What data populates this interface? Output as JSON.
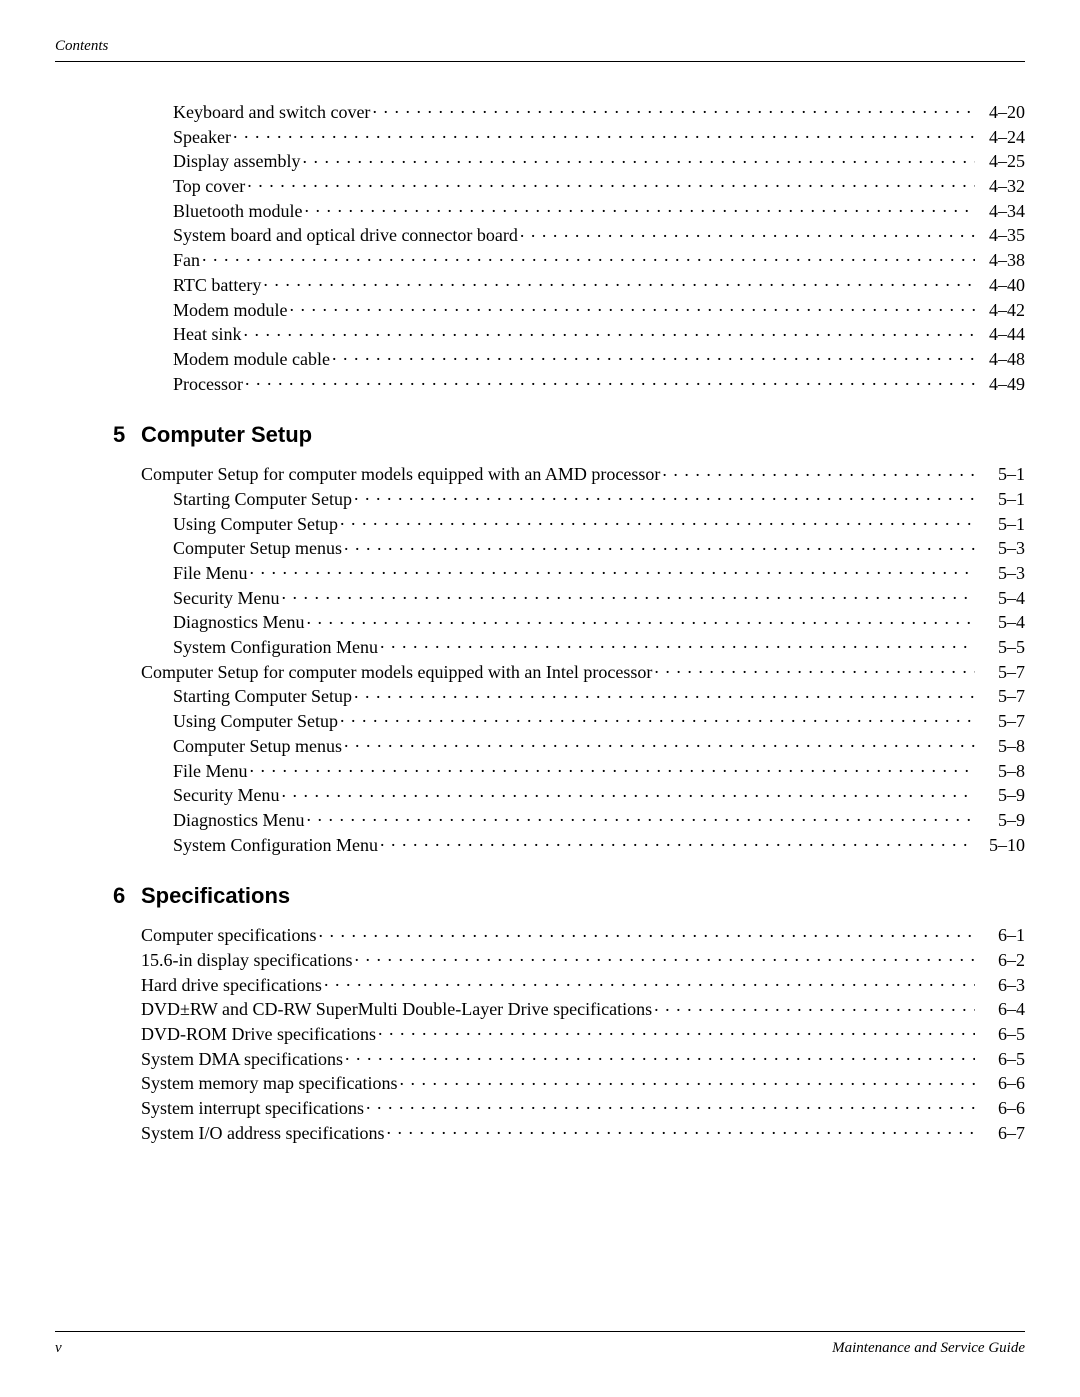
{
  "header": {
    "label": "Contents"
  },
  "footer": {
    "left": "v",
    "right": "Maintenance and Service Guide"
  },
  "preEntries": [
    {
      "label": "Keyboard and switch cover",
      "page": "4–20",
      "indent": 1
    },
    {
      "label": "Speaker",
      "page": "4–24",
      "indent": 1
    },
    {
      "label": "Display assembly",
      "page": "4–25",
      "indent": 1
    },
    {
      "label": "Top cover",
      "page": "4–32",
      "indent": 1
    },
    {
      "label": "Bluetooth module",
      "page": "4–34",
      "indent": 1
    },
    {
      "label": "System board and optical drive connector board",
      "page": "4–35",
      "indent": 1
    },
    {
      "label": "Fan",
      "page": "4–38",
      "indent": 1
    },
    {
      "label": "RTC battery",
      "page": "4–40",
      "indent": 1
    },
    {
      "label": "Modem module",
      "page": "4–42",
      "indent": 1
    },
    {
      "label": "Heat sink",
      "page": "4–44",
      "indent": 1
    },
    {
      "label": "Modem module cable",
      "page": "4–48",
      "indent": 1
    },
    {
      "label": "Processor",
      "page": "4–49",
      "indent": 1
    }
  ],
  "sections": [
    {
      "num": "5",
      "title": "Computer Setup",
      "entries": [
        {
          "label": "Computer Setup for computer models equipped with an AMD processor",
          "page": "5–1",
          "indent": 0
        },
        {
          "label": "Starting Computer Setup",
          "page": "5–1",
          "indent": 1
        },
        {
          "label": "Using Computer Setup",
          "page": "5–1",
          "indent": 1
        },
        {
          "label": "Computer Setup menus",
          "page": "5–3",
          "indent": 1
        },
        {
          "label": "File Menu",
          "page": "5–3",
          "indent": 1
        },
        {
          "label": "Security Menu",
          "page": "5–4",
          "indent": 1
        },
        {
          "label": "Diagnostics Menu",
          "page": "5–4",
          "indent": 1
        },
        {
          "label": "System Configuration Menu",
          "page": "5–5",
          "indent": 1
        },
        {
          "label": "Computer Setup for computer models equipped with an Intel processor",
          "page": "5–7",
          "indent": 0
        },
        {
          "label": "Starting Computer Setup",
          "page": "5–7",
          "indent": 1
        },
        {
          "label": "Using Computer Setup",
          "page": "5–7",
          "indent": 1
        },
        {
          "label": "Computer Setup menus",
          "page": "5–8",
          "indent": 1
        },
        {
          "label": "File Menu",
          "page": "5–8",
          "indent": 1
        },
        {
          "label": "Security Menu",
          "page": "5–9",
          "indent": 1
        },
        {
          "label": "Diagnostics Menu",
          "page": "5–9",
          "indent": 1
        },
        {
          "label": "System Configuration Menu",
          "page": "5–10",
          "indent": 1
        }
      ]
    },
    {
      "num": "6",
      "title": "Specifications",
      "entries": [
        {
          "label": "Computer specifications",
          "page": "6–1",
          "indent": 0
        },
        {
          "label": "15.6-in display specifications",
          "page": "6–2",
          "indent": 0
        },
        {
          "label": "Hard drive specifications",
          "page": "6–3",
          "indent": 0
        },
        {
          "label": "DVD±RW and CD-RW SuperMulti Double-Layer Drive specifications",
          "page": "6–4",
          "indent": 0
        },
        {
          "label": "DVD-ROM Drive specifications",
          "page": "6–5",
          "indent": 0
        },
        {
          "label": "System DMA specifications",
          "page": "6–5",
          "indent": 0
        },
        {
          "label": "System memory map specifications",
          "page": "6–6",
          "indent": 0
        },
        {
          "label": "System interrupt specifications",
          "page": "6–6",
          "indent": 0
        },
        {
          "label": "System I/O address specifications",
          "page": "6–7",
          "indent": 0
        }
      ]
    }
  ]
}
